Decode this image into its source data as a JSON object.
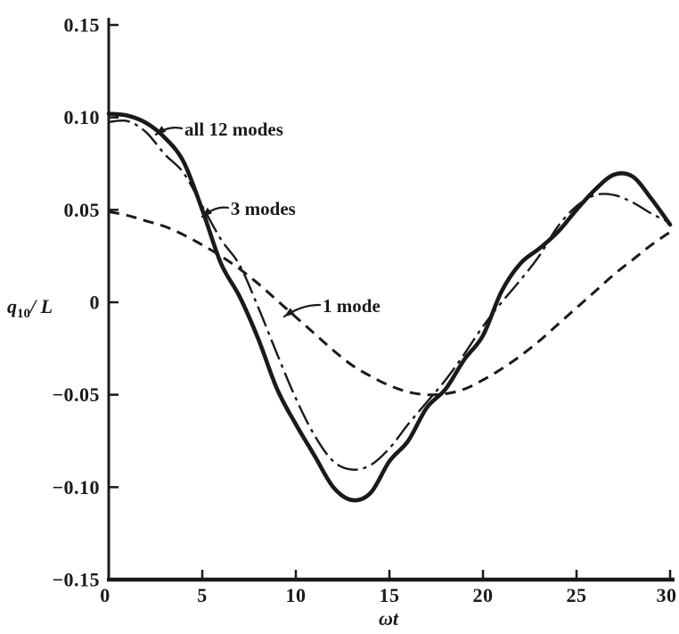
{
  "figure": {
    "background": "#ffffff",
    "ink": "#1a1a1a"
  },
  "chart_data": {
    "type": "line",
    "title": "",
    "xlabel": "ωt",
    "ylabel": "q10/L",
    "ylabel_parts": {
      "lead": "q",
      "sub": "10",
      "tail": "/ L"
    },
    "xlim": [
      0,
      30
    ],
    "ylim": [
      -0.15,
      0.15
    ],
    "x_ticks": [
      0,
      5,
      10,
      15,
      20,
      25,
      30
    ],
    "x_tick_labels": [
      "0",
      "5",
      "10",
      "15",
      "20",
      "25",
      "30"
    ],
    "y_ticks": [
      0.15,
      0.1,
      0.05,
      0,
      -0.05,
      -0.1,
      -0.15
    ],
    "y_tick_labels": [
      "0.15",
      "0.10",
      "0.05",
      "0",
      "−0.05",
      "−0.10",
      "−0.15"
    ],
    "grid": false,
    "legend_position": "inline-annotations",
    "x_start": 0,
    "x_step": 1,
    "series": [
      {
        "name": "all 12 modes",
        "style": "solid-thick",
        "values": [
          0.102,
          0.101,
          0.097,
          0.089,
          0.076,
          0.05,
          0.021,
          0.003,
          -0.02,
          -0.047,
          -0.066,
          -0.083,
          -0.1,
          -0.107,
          -0.103,
          -0.086,
          -0.075,
          -0.057,
          -0.047,
          -0.031,
          -0.018,
          0.006,
          0.021,
          0.029,
          0.038,
          0.05,
          0.061,
          0.069,
          0.068,
          0.056,
          0.042
        ]
      },
      {
        "name": "3 modes",
        "style": "dash-dot-thin",
        "values": [
          0.0975,
          0.098,
          0.092,
          0.08,
          0.07,
          0.052,
          0.034,
          0.02,
          -0.003,
          -0.028,
          -0.052,
          -0.072,
          -0.086,
          -0.0905,
          -0.088,
          -0.079,
          -0.066,
          -0.054,
          -0.042,
          -0.028,
          -0.013,
          0.0,
          0.012,
          0.025,
          0.041,
          0.052,
          0.058,
          0.058,
          0.054,
          0.048,
          0.043
        ]
      },
      {
        "name": "1 mode",
        "style": "dashed",
        "values": [
          0.049,
          0.047,
          0.044,
          0.041,
          0.0365,
          0.031,
          0.025,
          0.018,
          0.01,
          0.001,
          -0.008,
          -0.017,
          -0.026,
          -0.034,
          -0.04,
          -0.045,
          -0.0485,
          -0.05,
          -0.0495,
          -0.047,
          -0.042,
          -0.036,
          -0.029,
          -0.021,
          -0.012,
          -0.003,
          0.006,
          0.015,
          0.023,
          0.031,
          0.038
        ]
      }
    ],
    "annotations": [
      {
        "label": "all 12 modes",
        "series": "all 12 modes",
        "text_t": 4.05,
        "text_v": 0.0902,
        "tip_t": 2.52,
        "tip_v": 0.0907
      },
      {
        "label": "3 modes",
        "series": "3 modes",
        "text_t": 6.52,
        "text_v": 0.0473,
        "tip_t": 5.0,
        "tip_v": 0.0463
      },
      {
        "label": "1 mode",
        "series": "1 mode",
        "text_t": 11.43,
        "text_v": -0.0053,
        "tip_t": 9.38,
        "tip_v": -0.0077
      }
    ]
  }
}
